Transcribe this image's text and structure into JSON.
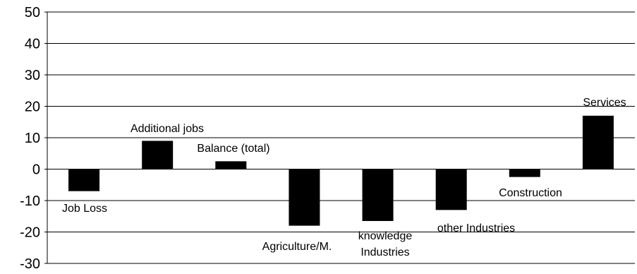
{
  "chart_data": {
    "type": "bar",
    "title": "",
    "xlabel": "",
    "ylabel": "",
    "ylim": [
      -30,
      50
    ],
    "y_ticks": [
      50,
      40,
      30,
      20,
      10,
      0,
      -10,
      -20,
      -30
    ],
    "grid": true,
    "legend": "none",
    "categories": [
      "Job Loss",
      "Additional jobs",
      "Balance (total)",
      "Agriculture/M.",
      "knowledge Industries",
      "other Industries",
      "Construction",
      "Services"
    ],
    "category_label_lines": [
      [
        "Job Loss"
      ],
      [
        "Additional jobs"
      ],
      [
        "Balance (total)"
      ],
      [
        "Agriculture/M."
      ],
      [
        "knowledge",
        "Industries"
      ],
      [
        "other Industries"
      ],
      [
        "Construction"
      ],
      [
        "Services"
      ]
    ],
    "values": [
      -7,
      9,
      2.5,
      -18,
      -16.5,
      -13,
      -2.5,
      17
    ],
    "colors": {
      "bar": "#000000",
      "grid": "#000000",
      "background": "#ffffff"
    }
  }
}
